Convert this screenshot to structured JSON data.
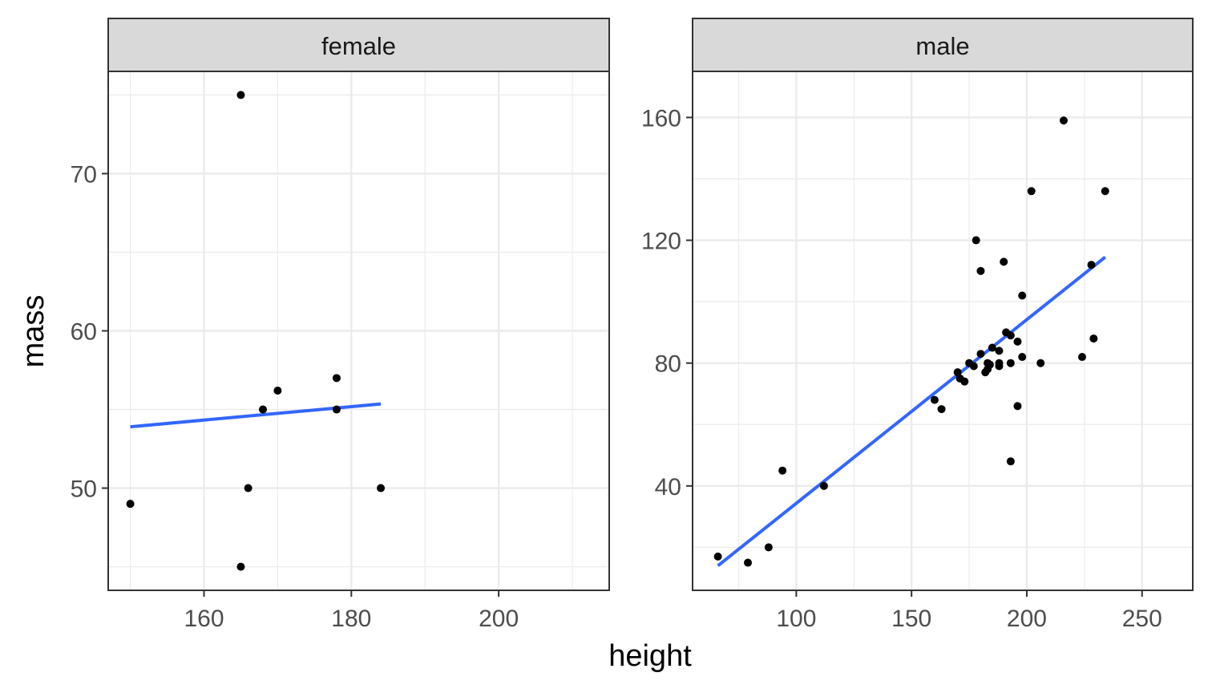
{
  "chart_data": {
    "type": "scatter",
    "xlabel": "height",
    "ylabel": "mass",
    "grid": true,
    "colors": {
      "points": "#000000",
      "fit_line": "#3366ff",
      "strip_bg": "#d9d9d9",
      "grid": "#ebebeb",
      "border": "#333333"
    },
    "panels": [
      {
        "name": "female",
        "xlim": [
          147,
          215
        ],
        "ylim": [
          43.5,
          76.5
        ],
        "x_ticks": [
          160,
          180,
          200
        ],
        "x_tick_labels": [
          "160",
          "180",
          "200"
        ],
        "y_ticks": [
          50,
          60,
          70
        ],
        "y_tick_labels": [
          "50",
          "60",
          "70"
        ],
        "points": [
          {
            "x": 150,
            "y": 49
          },
          {
            "x": 165,
            "y": 75
          },
          {
            "x": 165,
            "y": 45
          },
          {
            "x": 166,
            "y": 50
          },
          {
            "x": 168,
            "y": 55
          },
          {
            "x": 170,
            "y": 56.2
          },
          {
            "x": 178,
            "y": 57
          },
          {
            "x": 178,
            "y": 55
          },
          {
            "x": 184,
            "y": 50
          }
        ],
        "fit": {
          "x": [
            150,
            184
          ],
          "y": [
            53.9,
            55.35
          ]
        }
      },
      {
        "name": "male",
        "xlim": [
          55,
          272
        ],
        "ylim": [
          6,
          175
        ],
        "x_ticks": [
          100,
          150,
          200,
          250
        ],
        "x_tick_labels": [
          "100",
          "150",
          "200",
          "250"
        ],
        "y_ticks": [
          40,
          80,
          120,
          160
        ],
        "y_tick_labels": [
          "40",
          "80",
          "120",
          "160"
        ],
        "points": [
          {
            "x": 66,
            "y": 17
          },
          {
            "x": 79,
            "y": 15
          },
          {
            "x": 88,
            "y": 20
          },
          {
            "x": 94,
            "y": 45
          },
          {
            "x": 112,
            "y": 40
          },
          {
            "x": 160,
            "y": 68
          },
          {
            "x": 163,
            "y": 65
          },
          {
            "x": 170,
            "y": 77
          },
          {
            "x": 171,
            "y": 75
          },
          {
            "x": 173,
            "y": 74
          },
          {
            "x": 175,
            "y": 80
          },
          {
            "x": 177,
            "y": 79
          },
          {
            "x": 178,
            "y": 120
          },
          {
            "x": 180,
            "y": 110
          },
          {
            "x": 180,
            "y": 83
          },
          {
            "x": 182,
            "y": 77
          },
          {
            "x": 183,
            "y": 78
          },
          {
            "x": 183,
            "y": 80
          },
          {
            "x": 184,
            "y": 79.5
          },
          {
            "x": 185,
            "y": 85
          },
          {
            "x": 188,
            "y": 84
          },
          {
            "x": 188,
            "y": 80
          },
          {
            "x": 188,
            "y": 79
          },
          {
            "x": 190,
            "y": 113
          },
          {
            "x": 191,
            "y": 90
          },
          {
            "x": 193,
            "y": 80
          },
          {
            "x": 193,
            "y": 48
          },
          {
            "x": 193,
            "y": 89
          },
          {
            "x": 196,
            "y": 66
          },
          {
            "x": 196,
            "y": 87
          },
          {
            "x": 198,
            "y": 102
          },
          {
            "x": 198,
            "y": 82
          },
          {
            "x": 202,
            "y": 136
          },
          {
            "x": 206,
            "y": 80
          },
          {
            "x": 216,
            "y": 159
          },
          {
            "x": 224,
            "y": 82
          },
          {
            "x": 228,
            "y": 112
          },
          {
            "x": 229,
            "y": 88
          },
          {
            "x": 234,
            "y": 136
          }
        ],
        "fit": {
          "x": [
            66,
            234
          ],
          "y": [
            14,
            114.5
          ]
        }
      }
    ]
  }
}
